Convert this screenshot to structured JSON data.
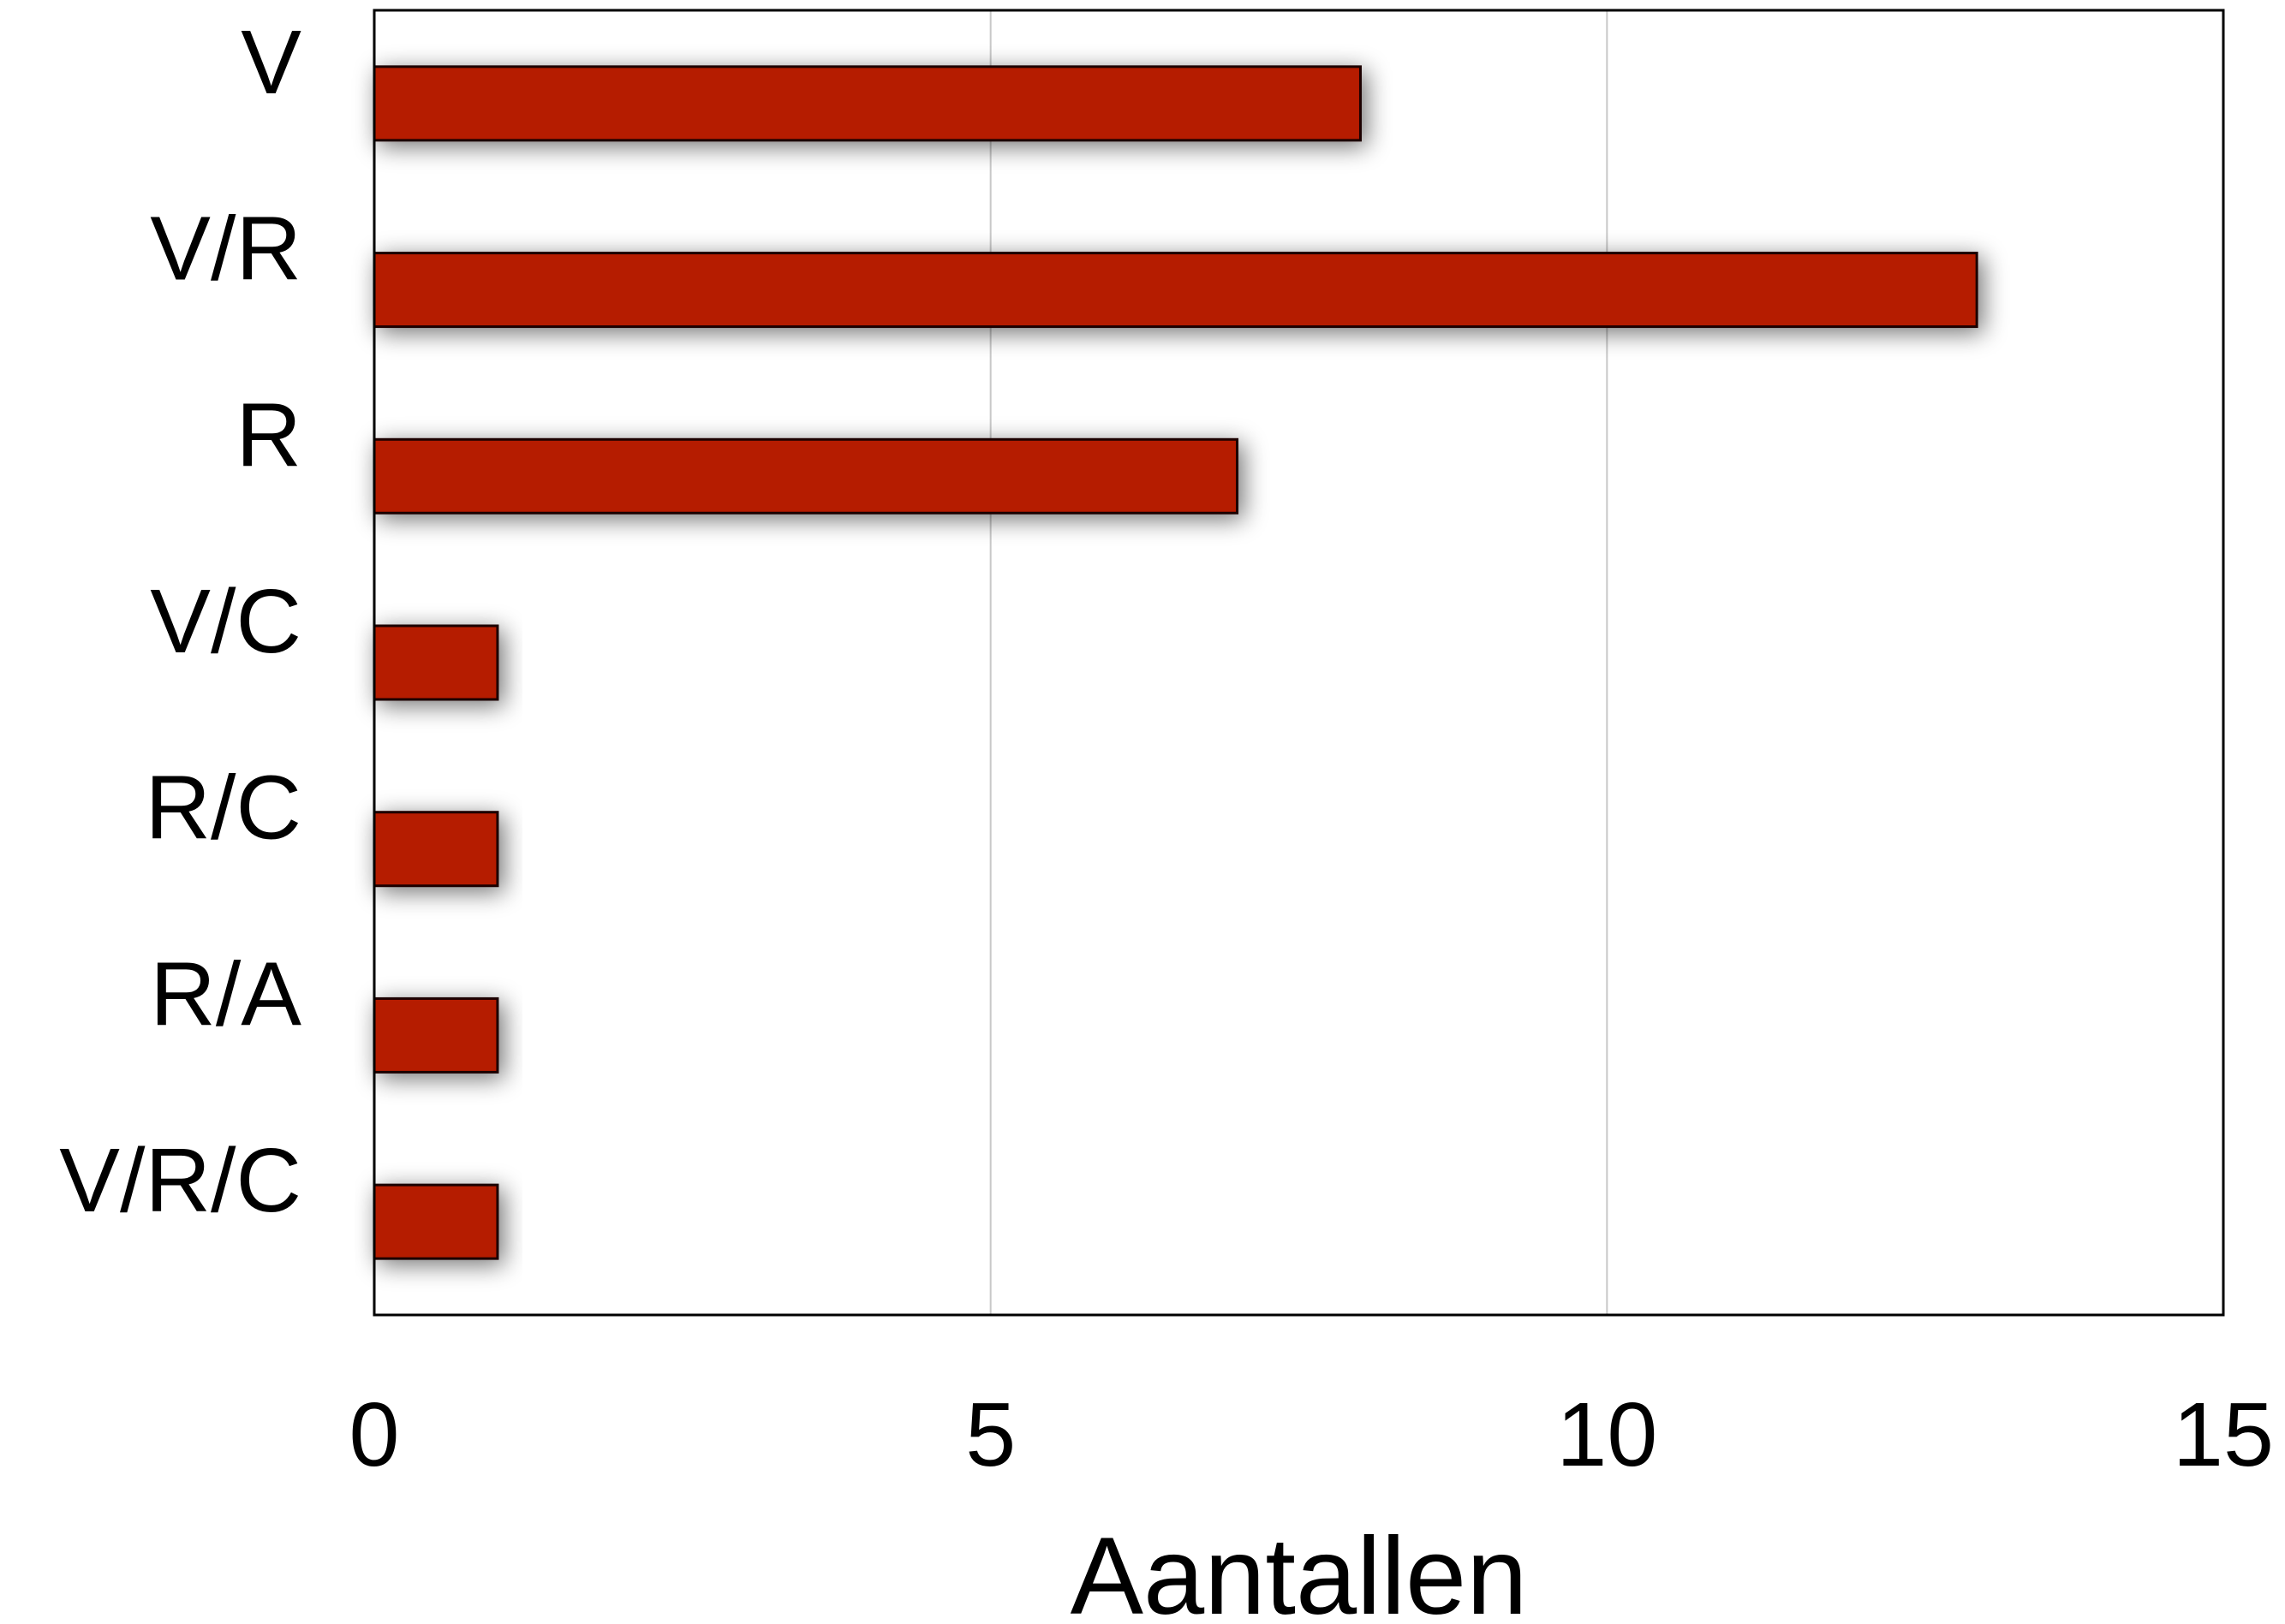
{
  "chart_data": {
    "type": "bar",
    "orientation": "horizontal",
    "categories": [
      "V",
      "V/R",
      "R",
      "V/C",
      "R/C",
      "R/A",
      "V/R/C"
    ],
    "values": [
      8,
      13,
      7,
      1,
      1,
      1,
      1
    ],
    "title": "",
    "xlabel": "Aantallen",
    "ylabel": "",
    "xlim": [
      0,
      15
    ],
    "xticks": [
      0,
      5,
      10,
      15
    ],
    "xtick_labels": [
      "0",
      "5",
      "10",
      "15"
    ],
    "grid": "vertical",
    "legend": "none",
    "colors": {
      "bar_fill": "#b51a00",
      "bar_stroke": "#1a0000",
      "grid": "#c8c8c8",
      "frame": "#000000"
    }
  }
}
